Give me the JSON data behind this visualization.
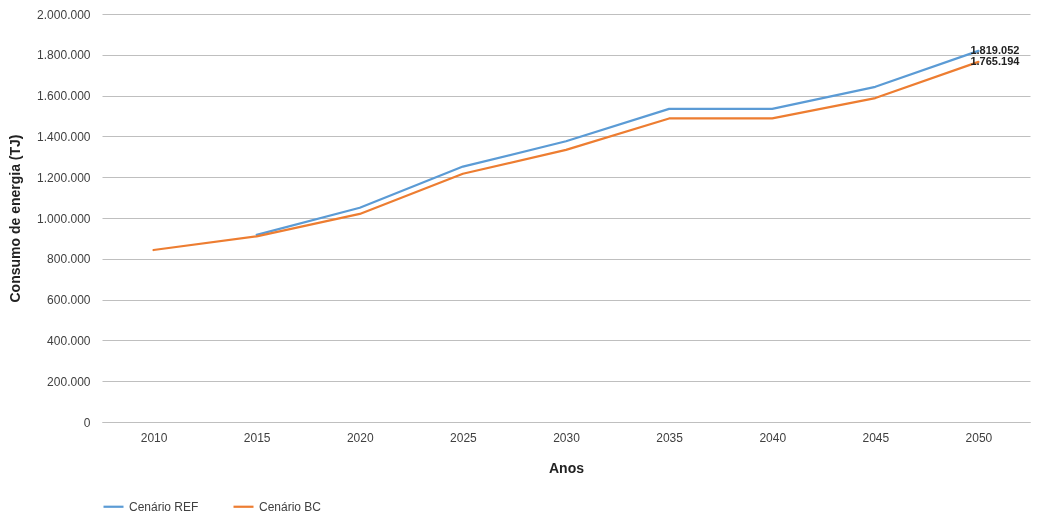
{
  "chart_data": {
    "type": "line",
    "xlabel": "Anos",
    "ylabel": "Consumo de energia (TJ)",
    "categories": [
      "2010",
      "2015",
      "2020",
      "2025",
      "2030",
      "2035",
      "2040",
      "2045",
      "2050"
    ],
    "series": [
      {
        "name": "Cenário REF",
        "color": "#5b9bd5",
        "values": [
          null,
          917000,
          1050000,
          1252000,
          1376000,
          1535000,
          1535000,
          1643000,
          1819052
        ],
        "value_labels": [
          null,
          null,
          null,
          null,
          null,
          null,
          null,
          null,
          "1.819.052"
        ]
      },
      {
        "name": "Cenário BC",
        "color": "#ed7d31",
        "values": [
          843000,
          910000,
          1020000,
          1217000,
          1334000,
          1488000,
          1488000,
          1588000,
          1765194
        ],
        "value_labels": [
          null,
          null,
          null,
          null,
          null,
          null,
          null,
          null,
          "1.765.194"
        ]
      }
    ],
    "ylim": [
      0,
      2000000
    ],
    "yticks": [
      {
        "value": 0,
        "label": "0"
      },
      {
        "value": 200000,
        "label": "200.000"
      },
      {
        "value": 400000,
        "label": "400.000"
      },
      {
        "value": 600000,
        "label": "600.000"
      },
      {
        "value": 800000,
        "label": "800.000"
      },
      {
        "value": 1000000,
        "label": "1.000.000"
      },
      {
        "value": 1200000,
        "label": "1.200.000"
      },
      {
        "value": 1400000,
        "label": "1.400.000"
      },
      {
        "value": 1600000,
        "label": "1.600.000"
      },
      {
        "value": 1800000,
        "label": "1.800.000"
      },
      {
        "value": 2000000,
        "label": "2.000.000"
      }
    ],
    "grid": "y",
    "legend": "bottom",
    "marker": "none",
    "line_style": "solid"
  }
}
